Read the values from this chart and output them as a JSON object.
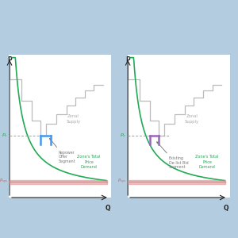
{
  "background_color": "#b3cce0",
  "panel_bg": "#ffffff",
  "fig_width": 3.0,
  "fig_height": 3.0,
  "dpi": 100,
  "panels": [
    {
      "highlight_color": "#4499ee",
      "annotation": [
        "Repower",
        "Offer",
        "Segment"
      ]
    },
    {
      "highlight_color": "#9966bb",
      "annotation": [
        "Existing",
        "De-list Bid",
        "Segment"
      ]
    }
  ],
  "supply_color": "#bbbbbb",
  "demand_color": "#22aa55",
  "psys_color": "#dd8888",
  "pz_color": "#66cc66",
  "label_color_gray": "#aaaaaa",
  "label_color_green": "#22aa55",
  "label_color_red": "#cc6666",
  "axis_color": "#222222"
}
